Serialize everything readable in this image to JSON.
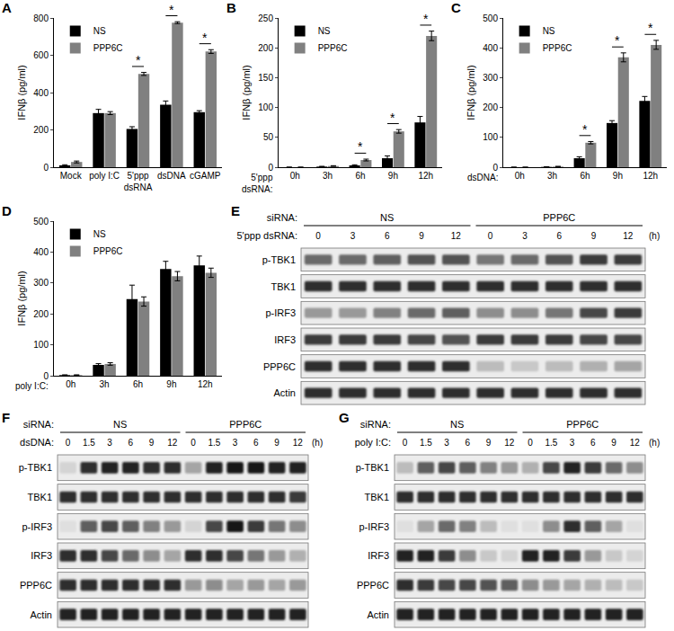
{
  "chart_data": [
    {
      "panel": "A",
      "type": "bar",
      "y_label": "IFNβ (pg/ml)",
      "categories": [
        "Mock",
        "poly I:C",
        "5'ppp dsRNA",
        "dsDNA",
        "cGAMP"
      ],
      "series": [
        {
          "name": "NS",
          "color": "#000000",
          "values": [
            10,
            290,
            205,
            335,
            295
          ],
          "errors": [
            3,
            20,
            12,
            20,
            8
          ]
        },
        {
          "name": "PPP6C",
          "color": "#808080",
          "values": [
            28,
            290,
            500,
            775,
            620
          ],
          "errors": [
            5,
            8,
            8,
            5,
            10
          ]
        }
      ],
      "ylim": [
        0,
        800
      ],
      "yticks": [
        0,
        200,
        400,
        600,
        800
      ],
      "grid": false,
      "legend": "upper left",
      "annotations": [
        {
          "category": "5'ppp dsRNA",
          "text": "*"
        },
        {
          "category": "dsDNA",
          "text": "*"
        },
        {
          "category": "cGAMP",
          "text": "*"
        }
      ]
    },
    {
      "panel": "B",
      "type": "bar",
      "y_label": "IFNβ (pg/ml)",
      "x_label": "5'ppp dsRNA:",
      "categories": [
        "0h",
        "3h",
        "6h",
        "9h",
        "12h"
      ],
      "series": [
        {
          "name": "NS",
          "color": "#000000",
          "values": [
            0,
            1,
            3,
            15,
            75
          ],
          "errors": [
            0,
            0.5,
            1,
            4,
            10
          ]
        },
        {
          "name": "PPP6C",
          "color": "#808080",
          "values": [
            0,
            2,
            12,
            60,
            220
          ],
          "errors": [
            0,
            0.5,
            1.5,
            3,
            8
          ]
        }
      ],
      "ylim": [
        0,
        250
      ],
      "yticks": [
        0,
        50,
        100,
        150,
        200,
        250
      ],
      "grid": false,
      "legend": "upper left",
      "annotations": [
        {
          "category": "6h",
          "text": "*"
        },
        {
          "category": "9h",
          "text": "*"
        },
        {
          "category": "12h",
          "text": "*"
        }
      ]
    },
    {
      "panel": "C",
      "type": "bar",
      "y_label": "IFNβ (pg/ml)",
      "x_label": "dsDNA:",
      "categories": [
        "0h",
        "3h",
        "6h",
        "9h",
        "12h"
      ],
      "series": [
        {
          "name": "NS",
          "color": "#000000",
          "values": [
            0,
            1,
            30,
            148,
            222
          ],
          "errors": [
            0,
            0.5,
            5,
            8,
            15
          ]
        },
        {
          "name": "PPP6C",
          "color": "#808080",
          "values": [
            0,
            2,
            82,
            368,
            410
          ],
          "errors": [
            0,
            1,
            4,
            15,
            15
          ]
        }
      ],
      "ylim": [
        0,
        500
      ],
      "yticks": [
        0,
        100,
        200,
        300,
        400,
        500
      ],
      "grid": false,
      "legend": "upper left",
      "annotations": [
        {
          "category": "6h",
          "text": "*"
        },
        {
          "category": "9h",
          "text": "*"
        },
        {
          "category": "12h",
          "text": "*"
        }
      ]
    },
    {
      "panel": "D",
      "type": "bar",
      "y_label": "IFNβ (pg/ml)",
      "x_label": "poly I:C:",
      "categories": [
        "0h",
        "3h",
        "6h",
        "9h",
        "12h"
      ],
      "series": [
        {
          "name": "NS",
          "color": "#000000",
          "values": [
            2,
            35,
            248,
            345,
            357
          ],
          "errors": [
            1,
            4,
            45,
            25,
            30
          ]
        },
        {
          "name": "PPP6C",
          "color": "#808080",
          "values": [
            2,
            38,
            240,
            322,
            333
          ],
          "errors": [
            1,
            4,
            15,
            15,
            15
          ]
        }
      ],
      "ylim": [
        0,
        500
      ],
      "yticks": [
        0,
        100,
        200,
        300,
        400,
        500
      ],
      "grid": false,
      "legend": "upper left",
      "annotations": []
    }
  ],
  "blots": [
    {
      "panel": "E",
      "sirna_label": "siRNA:",
      "groups": [
        "NS",
        "PPP6C"
      ],
      "treatment": "5'ppp dsRNA:",
      "lanes": [
        "0",
        "3",
        "6",
        "9",
        "12"
      ],
      "unit": "(h)",
      "rows": [
        {
          "name": "p-TBK1",
          "intensity": [
            0.55,
            0.55,
            0.6,
            0.65,
            0.65,
            0.5,
            0.55,
            0.65,
            0.75,
            0.75
          ]
        },
        {
          "name": "TBK1",
          "intensity": [
            0.8,
            0.8,
            0.8,
            0.8,
            0.8,
            0.8,
            0.8,
            0.8,
            0.8,
            0.8
          ]
        },
        {
          "name": "p-IRF3",
          "intensity": [
            0.35,
            0.35,
            0.45,
            0.55,
            0.6,
            0.4,
            0.4,
            0.5,
            0.7,
            0.75
          ]
        },
        {
          "name": "IRF3",
          "intensity": [
            0.75,
            0.75,
            0.75,
            0.7,
            0.65,
            0.75,
            0.75,
            0.75,
            0.7,
            0.7
          ]
        },
        {
          "name": "PPP6C",
          "intensity": [
            0.8,
            0.8,
            0.8,
            0.8,
            0.8,
            0.2,
            0.15,
            0.2,
            0.25,
            0.3
          ]
        },
        {
          "name": "Actin",
          "intensity": [
            0.8,
            0.8,
            0.8,
            0.8,
            0.8,
            0.8,
            0.8,
            0.8,
            0.8,
            0.8
          ]
        }
      ]
    },
    {
      "panel": "F",
      "sirna_label": "siRNA:",
      "groups": [
        "NS",
        "PPP6C"
      ],
      "treatment": "dsDNA:",
      "lanes": [
        "0",
        "1.5",
        "3",
        "6",
        "9",
        "12"
      ],
      "unit": "(h)",
      "rows": [
        {
          "name": "p-TBK1",
          "intensity": [
            0.1,
            0.8,
            0.85,
            0.85,
            0.8,
            0.8,
            0.3,
            0.85,
            0.9,
            0.9,
            0.85,
            0.85
          ]
        },
        {
          "name": "TBK1",
          "intensity": [
            0.8,
            0.8,
            0.8,
            0.8,
            0.8,
            0.8,
            0.8,
            0.8,
            0.8,
            0.8,
            0.8,
            0.75
          ]
        },
        {
          "name": "p-IRF3",
          "intensity": [
            0.05,
            0.6,
            0.7,
            0.6,
            0.45,
            0.35,
            0.1,
            0.7,
            0.9,
            0.75,
            0.5,
            0.4
          ]
        },
        {
          "name": "IRF3",
          "intensity": [
            0.8,
            0.8,
            0.7,
            0.55,
            0.4,
            0.3,
            0.8,
            0.8,
            0.7,
            0.5,
            0.35,
            0.25
          ]
        },
        {
          "name": "PPP6C",
          "intensity": [
            0.8,
            0.8,
            0.8,
            0.8,
            0.8,
            0.8,
            0.35,
            0.4,
            0.3,
            0.35,
            0.3,
            0.35
          ]
        },
        {
          "name": "Actin",
          "intensity": [
            0.85,
            0.85,
            0.85,
            0.85,
            0.85,
            0.85,
            0.85,
            0.85,
            0.85,
            0.85,
            0.85,
            0.85
          ]
        }
      ]
    },
    {
      "panel": "G",
      "sirna_label": "siRNA:",
      "groups": [
        "NS",
        "PPP6C"
      ],
      "treatment": "poly I:C:",
      "lanes": [
        "0",
        "1.5",
        "3",
        "6",
        "9",
        "12"
      ],
      "unit": "(h)",
      "rows": [
        {
          "name": "p-TBK1",
          "intensity": [
            0.2,
            0.6,
            0.7,
            0.6,
            0.45,
            0.35,
            0.25,
            0.7,
            0.85,
            0.75,
            0.55,
            0.4
          ]
        },
        {
          "name": "TBK1",
          "intensity": [
            0.8,
            0.8,
            0.8,
            0.8,
            0.8,
            0.8,
            0.8,
            0.8,
            0.8,
            0.8,
            0.8,
            0.8
          ]
        },
        {
          "name": "p-IRF3",
          "intensity": [
            0.05,
            0.3,
            0.55,
            0.45,
            0.2,
            0.05,
            0.05,
            0.4,
            0.8,
            0.6,
            0.3,
            0.05
          ]
        },
        {
          "name": "IRF3",
          "intensity": [
            0.85,
            0.85,
            0.75,
            0.4,
            0.15,
            0.1,
            0.85,
            0.85,
            0.75,
            0.35,
            0.15,
            0.1
          ]
        },
        {
          "name": "PPP6C",
          "intensity": [
            0.8,
            0.75,
            0.7,
            0.7,
            0.65,
            0.6,
            0.4,
            0.35,
            0.3,
            0.25,
            0.2,
            0.15
          ]
        },
        {
          "name": "Actin",
          "intensity": [
            0.85,
            0.85,
            0.85,
            0.85,
            0.85,
            0.85,
            0.85,
            0.85,
            0.85,
            0.85,
            0.85,
            0.85
          ]
        }
      ]
    }
  ]
}
